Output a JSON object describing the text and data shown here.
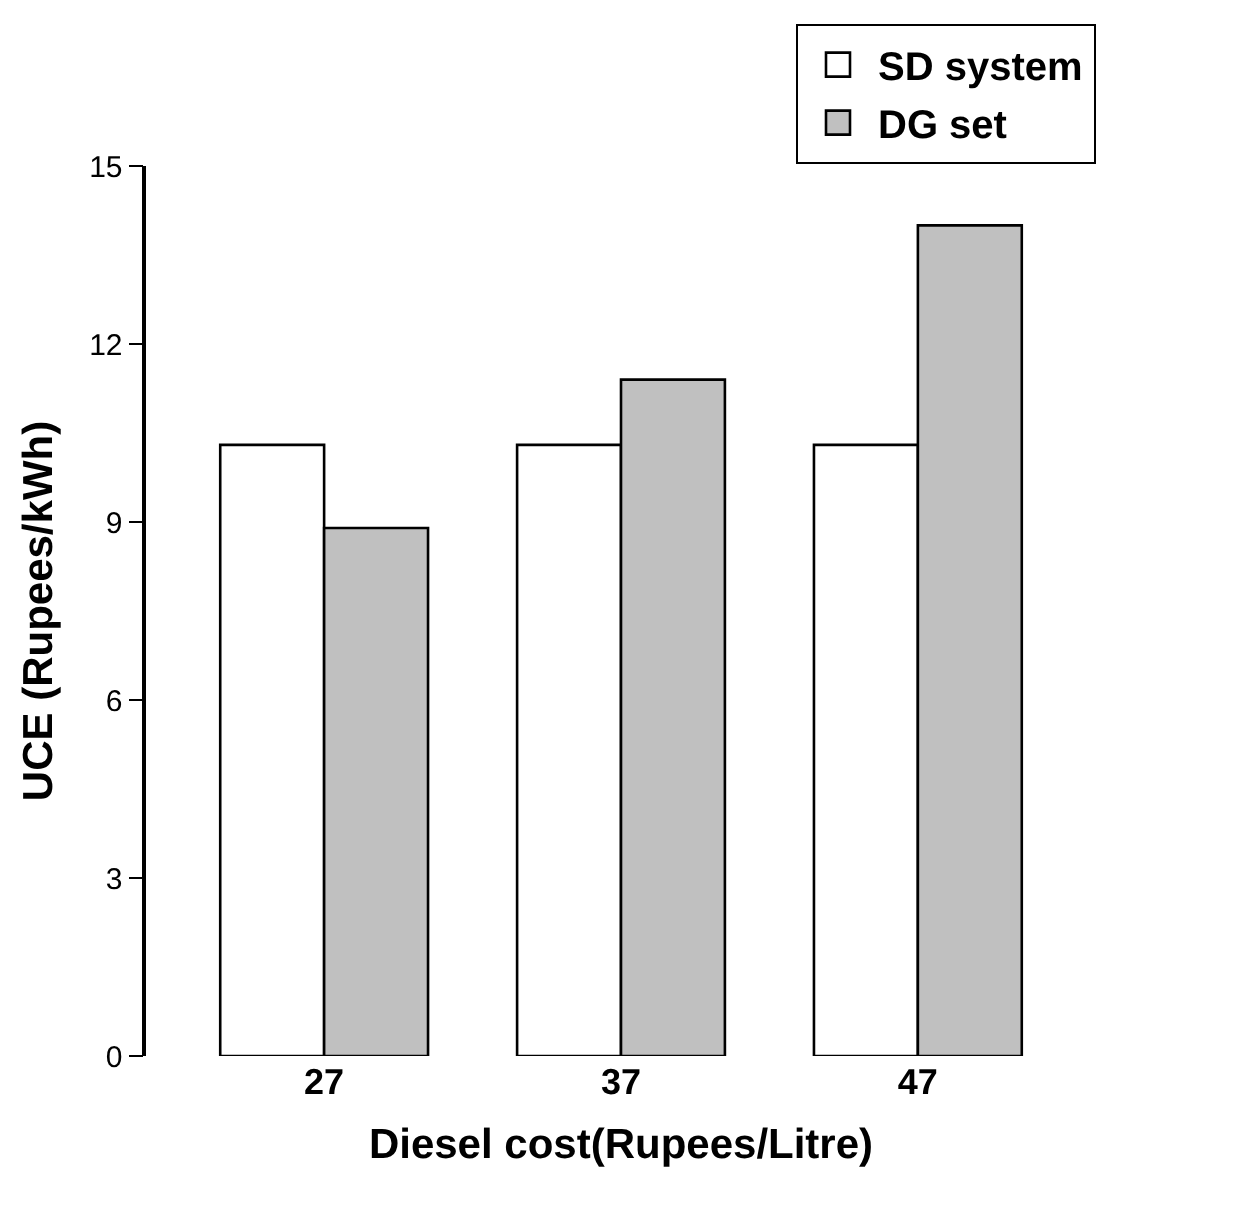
{
  "chart_data": {
    "type": "bar",
    "xlabel": "Diesel cost(Rupees/Litre)",
    "ylabel": "UCE (Rupees/kWh)",
    "categories": [
      "27",
      "37",
      "47"
    ],
    "series": [
      {
        "name": "SD system",
        "color": "#ffffff",
        "values": [
          10.3,
          10.3,
          10.3
        ]
      },
      {
        "name": "DG set",
        "color": "#c0c0c0",
        "values": [
          8.9,
          11.4,
          14.0
        ]
      }
    ],
    "ylim": [
      0,
      15
    ],
    "yticks": [
      0,
      3,
      6,
      9,
      12,
      15
    ],
    "grid": false,
    "legend": "top right"
  }
}
